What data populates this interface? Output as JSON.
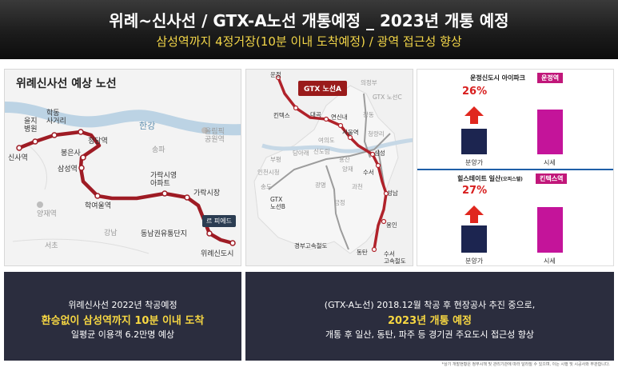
{
  "header": {
    "title": "위례~신사선 / GTX-A노선 개통예정 _ 2023년 개통 예정",
    "subtitle": "삼성역까지 4정거장(10분 이내 도착예정) / 광역 접근성 향상"
  },
  "left_map": {
    "title": "위례신사선 예상 노선",
    "river": "한강",
    "badge": "르 피에드",
    "stations": [
      "신사역",
      "을지\n병원",
      "학동\n사거리",
      "청담역",
      "봉은사",
      "삼성역",
      "학여울역",
      "가락시영\n아파트",
      "가락시장",
      "동남권유통단지",
      "위례신도시"
    ],
    "districts": [
      "올림픽\n공원역",
      "송파",
      "양재역",
      "강남",
      "서초"
    ]
  },
  "mid_map": {
    "line_label": "GTX 노선A",
    "stations_a": [
      "운정",
      "킨텍스",
      "대곡",
      "연신내",
      "서울역",
      "삼성",
      "수서",
      "성남",
      "용인",
      "동탄"
    ],
    "other_labels": [
      "의정부",
      "GTX 노선C",
      "창동",
      "청량리",
      "여의도",
      "신도림",
      "부평",
      "당아래",
      "인천시청",
      "송도",
      "용산",
      "양재",
      "과천",
      "광명",
      "금정",
      "GTX\n노선B",
      "경부고속철도",
      "수서\n고속철도"
    ]
  },
  "right_panel": {
    "top": {
      "title": "운정신도시 아이파크",
      "badge": "운정역",
      "pct": "26%",
      "bar_labels": [
        "분양가",
        "시세"
      ],
      "bar_values": [
        0.45,
        0.8
      ]
    },
    "bottom": {
      "title": "힐스테이트 일산",
      "title_note": "(오피스텔)",
      "badge": "킨텍스역",
      "pct": "27%",
      "bar_labels": [
        "분양가",
        "시세"
      ],
      "bar_values": [
        0.48,
        0.82
      ]
    },
    "colors": {
      "base_bar": "#1c2550",
      "market_bar": "#c4149a",
      "arrow": "#e0271e"
    }
  },
  "info_left": {
    "line1": "위례신사선 2022년 착공예정",
    "highlight": "환승없이 삼성역까지 10분 이내 도착",
    "line3": "일평균 이용객 6.2만명 예상"
  },
  "info_right": {
    "line1": "(GTX-A노선) 2018.12월 착공 후 현장공사 추진 중으로,",
    "highlight": "2023년 개통 예정",
    "line3": "개통 후 일산, 동탄, 파주 등 경기권 주요도시 접근성 향상"
  },
  "footnote": "*상기 개발현황은 정부시책 및 관리기관에 따라 달라질 수 있으며, 이는 시행 및 시공사와 무관합니다."
}
